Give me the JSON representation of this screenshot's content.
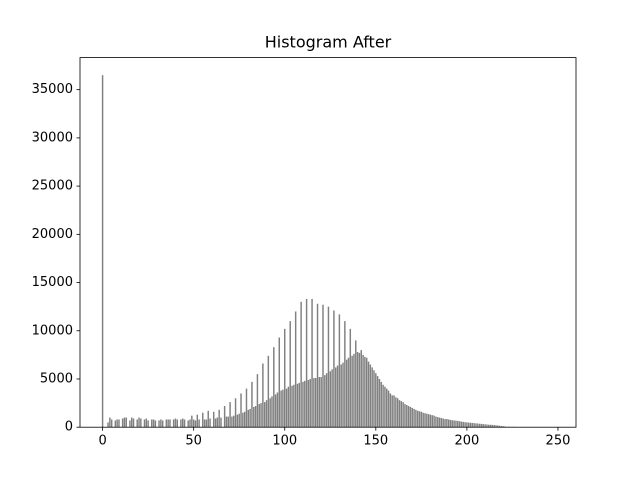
{
  "chart_data": {
    "type": "bar",
    "title": "Histogram After",
    "color": "#808080",
    "x": [
      0,
      1,
      2,
      3,
      4,
      5,
      6,
      7,
      8,
      9,
      10,
      11,
      12,
      13,
      14,
      15,
      16,
      17,
      18,
      19,
      20,
      21,
      22,
      23,
      24,
      25,
      26,
      27,
      28,
      29,
      30,
      31,
      32,
      33,
      34,
      35,
      36,
      37,
      38,
      39,
      40,
      41,
      42,
      43,
      44,
      45,
      46,
      47,
      48,
      49,
      50,
      51,
      52,
      53,
      54,
      55,
      56,
      57,
      58,
      59,
      60,
      61,
      62,
      63,
      64,
      65,
      66,
      67,
      68,
      69,
      70,
      71,
      72,
      73,
      74,
      75,
      76,
      77,
      78,
      79,
      80,
      81,
      82,
      83,
      84,
      85,
      86,
      87,
      88,
      89,
      90,
      91,
      92,
      93,
      94,
      95,
      96,
      97,
      98,
      99,
      100,
      101,
      102,
      103,
      104,
      105,
      106,
      107,
      108,
      109,
      110,
      111,
      112,
      113,
      114,
      115,
      116,
      117,
      118,
      119,
      120,
      121,
      122,
      123,
      124,
      125,
      126,
      127,
      128,
      129,
      130,
      131,
      132,
      133,
      134,
      135,
      136,
      137,
      138,
      139,
      140,
      141,
      142,
      143,
      144,
      145,
      146,
      147,
      148,
      149,
      150,
      151,
      152,
      153,
      154,
      155,
      156,
      157,
      158,
      159,
      160,
      161,
      162,
      163,
      164,
      165,
      166,
      167,
      168,
      169,
      170,
      171,
      172,
      173,
      174,
      175,
      176,
      177,
      178,
      179,
      180,
      181,
      182,
      183,
      184,
      185,
      186,
      187,
      188,
      189,
      190,
      191,
      192,
      193,
      194,
      195,
      196,
      197,
      198,
      199,
      200,
      201,
      202,
      203,
      204,
      205,
      206,
      207,
      208,
      209,
      210,
      211,
      212,
      213,
      214,
      215,
      216,
      217,
      218,
      219,
      220,
      221,
      222,
      223,
      224,
      225,
      226,
      227,
      228,
      229,
      230,
      231,
      232,
      233,
      234,
      235,
      236,
      237,
      238,
      239,
      240,
      241,
      242,
      243,
      244,
      245,
      246,
      247
    ],
    "values": [
      36500,
      0,
      0,
      500,
      1000,
      800,
      0,
      700,
      800,
      800,
      0,
      900,
      1000,
      1000,
      0,
      700,
      1000,
      900,
      0,
      800,
      1000,
      900,
      0,
      800,
      900,
      700,
      0,
      800,
      800,
      700,
      0,
      700,
      800,
      700,
      0,
      800,
      800,
      800,
      0,
      800,
      900,
      800,
      0,
      800,
      900,
      800,
      0,
      700,
      800,
      1200,
      800,
      700,
      1300,
      800,
      0,
      1500,
      800,
      800,
      1700,
      900,
      0,
      1600,
      900,
      1000,
      1800,
      1000,
      0,
      2200,
      1100,
      1100,
      2600,
      1100,
      1200,
      3000,
      1300,
      1400,
      3500,
      1500,
      1600,
      4000,
      1800,
      1900,
      4700,
      2100,
      2200,
      5500,
      2400,
      2500,
      6600,
      2600,
      2800,
      7400,
      3000,
      3200,
      8300,
      3400,
      3600,
      9300,
      3800,
      3900,
      10200,
      4000,
      4200,
      11000,
      4300,
      4400,
      12000,
      4500,
      4600,
      13000,
      4700,
      4800,
      13300,
      4900,
      5000,
      13300,
      5100,
      5100,
      12800,
      5200,
      5200,
      12700,
      5400,
      5600,
      12500,
      5800,
      6000,
      12100,
      6200,
      6400,
      11700,
      6500,
      6700,
      11000,
      7000,
      7200,
      10200,
      7400,
      7600,
      9000,
      7800,
      7700,
      8000,
      7500,
      7300,
      7200,
      6800,
      6500,
      6200,
      5900,
      5600,
      5300,
      5000,
      4700,
      4400,
      4200,
      4000,
      3800,
      3500,
      3300,
      3300,
      3100,
      3000,
      2800,
      2700,
      2600,
      2400,
      2300,
      2200,
      2100,
      2000,
      1900,
      1800,
      1700,
      1650,
      1600,
      1500,
      1450,
      1400,
      1350,
      1300,
      1250,
      1200,
      1100,
      1050,
      1000,
      950,
      900,
      850,
      850,
      800,
      750,
      720,
      700,
      680,
      650,
      620,
      580,
      550,
      520,
      500,
      480,
      460,
      440,
      420,
      400,
      380,
      360,
      340,
      320,
      300,
      280,
      260,
      250,
      240,
      220,
      200,
      180,
      150,
      120,
      100,
      80,
      0,
      60,
      0,
      40,
      0,
      30,
      0,
      20,
      0,
      0,
      10,
      0,
      0,
      0,
      0,
      0,
      0,
      0,
      0,
      0,
      0,
      0,
      0,
      0,
      0,
      0
    ],
    "xlim": [
      -12.4,
      259.9
    ],
    "xticks": [
      0,
      50,
      100,
      150,
      200,
      250
    ],
    "ylim": [
      0,
      38325
    ],
    "yticks": [
      0,
      5000,
      10000,
      15000,
      20000,
      25000,
      30000,
      35000
    ]
  }
}
